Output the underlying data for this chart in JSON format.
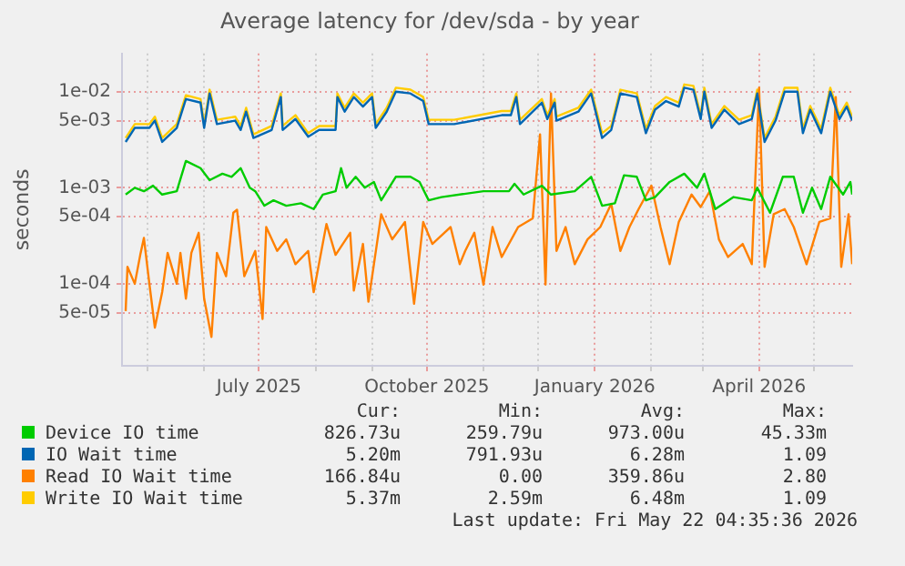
{
  "chart_data": {
    "type": "line",
    "title": "Average latency for /dev/sda - by year",
    "ylabel": "seconds",
    "log": "y",
    "grid": true,
    "legend": "bottom",
    "marker": "none",
    "line_style": "solid",
    "xlim": [
      "2025-04-17",
      "2026-05-22"
    ],
    "xticks": [
      {
        "value": "2025-05-01",
        "label": null
      },
      {
        "value": "2025-06-01",
        "label": null
      },
      {
        "value": "2025-07-01",
        "label": "July 2025"
      },
      {
        "value": "2025-08-01",
        "label": null
      },
      {
        "value": "2025-09-01",
        "label": null
      },
      {
        "value": "2025-10-01",
        "label": "October 2025"
      },
      {
        "value": "2025-11-01",
        "label": null
      },
      {
        "value": "2025-12-01",
        "label": null
      },
      {
        "value": "2026-01-01",
        "label": "January 2026"
      },
      {
        "value": "2026-02-01",
        "label": null
      },
      {
        "value": "2026-03-01",
        "label": null
      },
      {
        "value": "2026-04-01",
        "label": "April 2026"
      },
      {
        "value": "2026-05-01",
        "label": null
      }
    ],
    "ylim": [
      1.4e-05,
      0.025
    ],
    "yticks": [
      {
        "value": 5e-05,
        "label": "5e-05"
      },
      {
        "value": 0.0001,
        "label": "1e-04"
      },
      {
        "value": 0.0005,
        "label": "5e-04"
      },
      {
        "value": 0.001,
        "label": "1e-03"
      },
      {
        "value": 0.005,
        "label": "5e-03"
      },
      {
        "value": 0.01,
        "label": "1e-02"
      }
    ],
    "x": [
      "2025-04-19",
      "2025-04-24",
      "2025-05-02",
      "2025-05-05",
      "2025-05-09",
      "2025-05-17",
      "2025-05-22",
      "2025-05-30",
      "2025-06-01",
      "2025-06-04",
      "2025-06-08",
      "2025-06-18",
      "2025-06-21",
      "2025-06-24",
      "2025-06-28",
      "2025-07-08",
      "2025-07-13",
      "2025-07-14",
      "2025-07-21",
      "2025-07-28",
      "2025-08-03",
      "2025-08-12",
      "2025-08-13",
      "2025-08-17",
      "2025-08-22",
      "2025-08-27",
      "2025-09-01",
      "2025-09-03",
      "2025-09-09",
      "2025-09-14",
      "2025-09-22",
      "2025-09-29",
      "2025-10-02",
      "2025-10-09",
      "2025-10-16",
      "2025-11-11",
      "2025-11-16",
      "2025-11-19",
      "2025-11-21",
      "2025-11-28",
      "2025-12-03",
      "2025-12-06",
      "2025-12-10",
      "2025-12-11",
      "2025-12-23",
      "2025-12-30",
      "2026-01-05",
      "2026-01-10",
      "2026-01-15",
      "2026-01-24",
      "2026-01-29",
      "2026-02-03",
      "2026-02-09",
      "2026-02-16",
      "2026-02-19",
      "2026-02-24",
      "2026-02-28",
      "2026-03-02",
      "2026-03-06",
      "2026-03-13",
      "2026-03-21",
      "2026-03-28",
      "2026-03-31",
      "2026-04-04",
      "2026-04-10",
      "2026-04-15",
      "2026-04-22",
      "2026-04-25",
      "2026-04-29",
      "2026-05-05",
      "2026-05-10",
      "2026-05-15",
      "2026-05-19",
      "2026-05-22"
    ],
    "series": [
      {
        "name": "Device IO time",
        "color": "#00cc00",
        "x": [
          "2025-04-19",
          "2025-04-24",
          "2025-04-29",
          "2025-05-04",
          "2025-05-09",
          "2025-05-17",
          "2025-05-22",
          "2025-05-30",
          "2025-06-04",
          "2025-06-11",
          "2025-06-16",
          "2025-06-21",
          "2025-06-26",
          "2025-06-29",
          "2025-07-04",
          "2025-07-09",
          "2025-07-16",
          "2025-07-24",
          "2025-07-31",
          "2025-08-05",
          "2025-08-12",
          "2025-08-15",
          "2025-08-18",
          "2025-08-23",
          "2025-08-28",
          "2025-09-02",
          "2025-09-06",
          "2025-09-14",
          "2025-09-22",
          "2025-09-27",
          "2025-10-02",
          "2025-10-09",
          "2025-11-01",
          "2025-11-15",
          "2025-11-18",
          "2025-11-23",
          "2025-12-03",
          "2025-12-08",
          "2025-12-21",
          "2025-12-30",
          "2026-01-05",
          "2026-01-12",
          "2026-01-17",
          "2026-01-24",
          "2026-01-29",
          "2026-02-03",
          "2026-02-11",
          "2026-02-19",
          "2026-02-26",
          "2026-03-02",
          "2026-03-08",
          "2026-03-18",
          "2026-03-28",
          "2026-03-31",
          "2026-04-07",
          "2026-04-14",
          "2026-04-20",
          "2026-04-25",
          "2026-04-30",
          "2026-05-05",
          "2026-05-10",
          "2026-05-17",
          "2026-05-21",
          "2026-05-22"
        ],
        "values": [
          0.00085,
          0.001,
          0.00092,
          0.00105,
          0.00085,
          0.00092,
          0.0019,
          0.0016,
          0.0012,
          0.0014,
          0.0013,
          0.0016,
          0.001,
          0.00092,
          0.00065,
          0.00074,
          0.00065,
          0.00069,
          0.0006,
          0.00085,
          0.00092,
          0.0016,
          0.001,
          0.0013,
          0.001,
          0.00115,
          0.00074,
          0.0013,
          0.0013,
          0.00115,
          0.00074,
          0.0008,
          0.00092,
          0.00092,
          0.0011,
          0.00085,
          0.00105,
          0.00085,
          0.00092,
          0.0013,
          0.00065,
          0.00069,
          0.00135,
          0.0013,
          0.00074,
          0.0008,
          0.00115,
          0.0014,
          0.001,
          0.0014,
          0.0006,
          0.0008,
          0.00074,
          0.001,
          0.00055,
          0.0013,
          0.0013,
          0.00055,
          0.001,
          0.0006,
          0.0013,
          0.00085,
          0.00115,
          0.00085
        ]
      },
      {
        "name": "IO Wait time",
        "color": "#0066b3",
        "values": [
          0.003,
          0.0042,
          0.0042,
          0.005,
          0.003,
          0.0042,
          0.0084,
          0.0077,
          0.0042,
          0.0096,
          0.0046,
          0.005,
          0.004,
          0.0062,
          0.0033,
          0.004,
          0.0088,
          0.004,
          0.0052,
          0.0034,
          0.004,
          0.004,
          0.0088,
          0.0062,
          0.0088,
          0.007,
          0.0088,
          0.0042,
          0.0062,
          0.01,
          0.0096,
          0.008,
          0.0046,
          0.0046,
          0.0046,
          0.0057,
          0.0057,
          0.0088,
          0.0046,
          0.0062,
          0.0077,
          0.0052,
          0.0077,
          0.005,
          0.0062,
          0.0096,
          0.0033,
          0.004,
          0.0096,
          0.0088,
          0.0037,
          0.0065,
          0.008,
          0.007,
          0.011,
          0.0105,
          0.0052,
          0.01,
          0.0042,
          0.0065,
          0.0046,
          0.0052,
          0.0096,
          0.003,
          0.005,
          0.01,
          0.01,
          0.0037,
          0.0065,
          0.0037,
          0.01,
          0.0052,
          0.007,
          0.005
        ]
      },
      {
        "name": "Read IO Wait time",
        "color": "#ff8000",
        "x": [
          "2025-04-19",
          "2025-04-20",
          "2025-04-24",
          "2025-04-27",
          "2025-04-29",
          "2025-05-02",
          "2025-05-05",
          "2025-05-09",
          "2025-05-12",
          "2025-05-17",
          "2025-05-19",
          "2025-05-22",
          "2025-05-25",
          "2025-05-29",
          "2025-06-01",
          "2025-06-05",
          "2025-06-08",
          "2025-06-13",
          "2025-06-17",
          "2025-06-19",
          "2025-06-23",
          "2025-06-29",
          "2025-07-03",
          "2025-07-05",
          "2025-07-11",
          "2025-07-16",
          "2025-07-21",
          "2025-07-28",
          "2025-07-31",
          "2025-08-07",
          "2025-08-12",
          "2025-08-20",
          "2025-08-22",
          "2025-08-27",
          "2025-08-30",
          "2025-09-06",
          "2025-09-12",
          "2025-09-19",
          "2025-09-24",
          "2025-09-29",
          "2025-10-04",
          "2025-10-14",
          "2025-10-19",
          "2025-10-22",
          "2025-10-27",
          "2025-11-01",
          "2025-11-06",
          "2025-11-11",
          "2025-11-20",
          "2025-11-28",
          "2025-12-02",
          "2025-12-05",
          "2025-12-08",
          "2025-12-11",
          "2025-12-16",
          "2025-12-21",
          "2025-12-28",
          "2026-01-04",
          "2026-01-10",
          "2026-01-15",
          "2026-01-20",
          "2026-01-25",
          "2026-02-01",
          "2026-02-06",
          "2026-02-11",
          "2026-02-16",
          "2026-02-23",
          "2026-02-28",
          "2026-03-05",
          "2026-03-10",
          "2026-03-15",
          "2026-03-23",
          "2026-03-28",
          "2026-04-01",
          "2026-04-04",
          "2026-04-09",
          "2026-04-15",
          "2026-04-20",
          "2026-04-27",
          "2026-05-04",
          "2026-05-10",
          "2026-05-13",
          "2026-05-16",
          "2026-05-20",
          "2026-05-22"
        ],
        "values": [
          5.2e-05,
          0.00015,
          0.0001,
          0.0002,
          0.0003,
          0.0001,
          3.5e-05,
          8.2e-05,
          0.00021,
          0.0001,
          0.00021,
          7e-05,
          0.00021,
          0.00034,
          7e-05,
          2.8e-05,
          0.00021,
          0.00012,
          0.00055,
          0.00059,
          0.00012,
          0.00022,
          4.3e-05,
          0.00039,
          0.00022,
          0.00029,
          0.00016,
          0.00022,
          8.2e-05,
          0.00042,
          0.0002,
          0.00034,
          8.5e-05,
          0.00026,
          6.5e-05,
          0.00053,
          0.00029,
          0.00044,
          6.2e-05,
          0.00044,
          0.00026,
          0.00039,
          0.00016,
          0.00022,
          0.00034,
          9.8e-05,
          0.00039,
          0.00019,
          0.00039,
          0.00048,
          0.0036,
          9.8e-05,
          0.0096,
          0.00022,
          0.00039,
          0.00016,
          0.00029,
          0.00039,
          0.00068,
          0.00022,
          0.00039,
          0.0006,
          0.00105,
          0.00039,
          0.00016,
          0.00044,
          0.00085,
          0.00063,
          0.00092,
          0.00029,
          0.00019,
          0.00026,
          0.00016,
          0.011,
          0.00015,
          0.00053,
          0.0006,
          0.00039,
          0.00016,
          0.00044,
          0.00048,
          0.0088,
          0.00015,
          0.00053,
          0.00016
        ]
      },
      {
        "name": "Write IO Wait time",
        "color": "#ffcc00",
        "values": [
          0.0033,
          0.0046,
          0.0046,
          0.0055,
          0.0033,
          0.0046,
          0.0092,
          0.0084,
          0.0046,
          0.0105,
          0.0051,
          0.0055,
          0.0044,
          0.0068,
          0.0036,
          0.0044,
          0.0096,
          0.0044,
          0.0057,
          0.0037,
          0.0044,
          0.0044,
          0.0096,
          0.0068,
          0.0096,
          0.0077,
          0.0096,
          0.0046,
          0.0068,
          0.011,
          0.0105,
          0.0088,
          0.0051,
          0.0051,
          0.0051,
          0.0063,
          0.0063,
          0.0096,
          0.0051,
          0.0068,
          0.0084,
          0.0057,
          0.0084,
          0.0055,
          0.0068,
          0.0105,
          0.0037,
          0.0044,
          0.0105,
          0.0096,
          0.0041,
          0.0071,
          0.0088,
          0.0077,
          0.0119,
          0.0115,
          0.0057,
          0.011,
          0.0046,
          0.0071,
          0.0051,
          0.0057,
          0.0105,
          0.0033,
          0.0055,
          0.011,
          0.011,
          0.0041,
          0.0071,
          0.0041,
          0.011,
          0.0057,
          0.0077,
          0.0055
        ]
      }
    ],
    "annotations": [
      "Cur:",
      "Min:",
      "Avg:",
      "Max:",
      "826.73u",
      "259.79u",
      "973.00u",
      "45.33m",
      "5.20m",
      "791.93u",
      "6.28m",
      "1.09",
      "166.84u",
      "0.00",
      "359.86u",
      "2.80",
      "5.37m",
      "2.59m",
      "6.48m",
      "1.09",
      "Last update: Fri May 22 04:35:36 2026"
    ]
  }
}
